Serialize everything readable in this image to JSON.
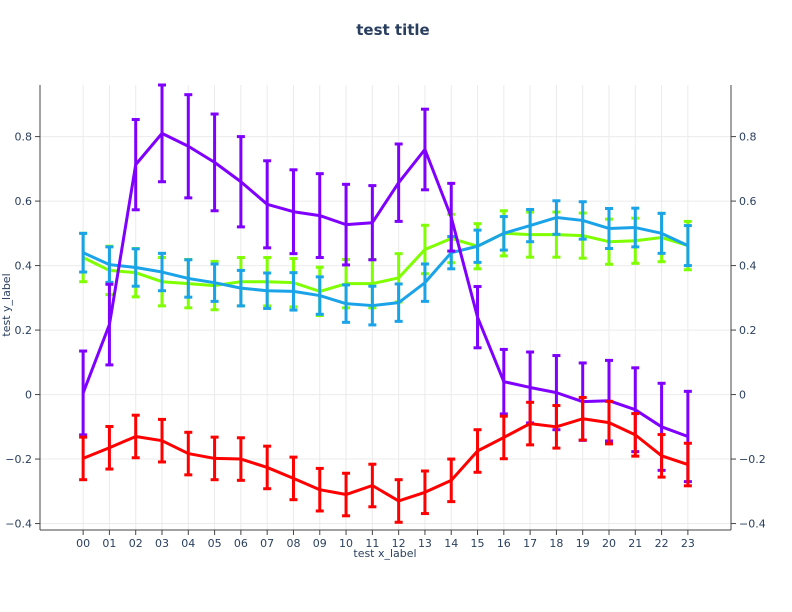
{
  "chart_data": {
    "type": "line",
    "title": "test title",
    "xlabel": "test x_label",
    "ylabel": "test y_label",
    "categories": [
      "00",
      "01",
      "02",
      "03",
      "04",
      "05",
      "06",
      "07",
      "08",
      "09",
      "10",
      "11",
      "12",
      "13",
      "14",
      "15",
      "16",
      "17",
      "18",
      "19",
      "20",
      "21",
      "22",
      "23"
    ],
    "xlim": [
      -1.64,
      24.64
    ],
    "ylim": [
      -0.42,
      0.96
    ],
    "yticks": [
      -0.4,
      -0.2,
      0,
      0.2,
      0.4,
      0.6,
      0.8
    ],
    "ytick_labels": [
      "−0.4",
      "−0.2",
      "0",
      "0.2",
      "0.4",
      "0.6",
      "0.8"
    ],
    "grid": true,
    "series": [
      {
        "name": "green",
        "color": "#7fff00",
        "values": [
          0.425,
          0.385,
          0.378,
          0.35,
          0.344,
          0.338,
          0.35,
          0.35,
          0.347,
          0.32,
          0.344,
          0.344,
          0.362,
          0.45,
          0.484,
          0.46,
          0.5,
          0.496,
          0.496,
          0.493,
          0.474,
          0.477,
          0.487,
          0.462
        ],
        "errors": [
          0.075,
          0.075,
          0.075,
          0.075,
          0.075,
          0.075,
          0.075,
          0.075,
          0.075,
          0.075,
          0.075,
          0.075,
          0.075,
          0.075,
          0.075,
          0.07,
          0.07,
          0.07,
          0.07,
          0.07,
          0.07,
          0.07,
          0.075,
          0.075
        ]
      },
      {
        "name": "blue",
        "color": "#1aa3e8",
        "values": [
          0.44,
          0.403,
          0.394,
          0.38,
          0.36,
          0.347,
          0.33,
          0.322,
          0.32,
          0.307,
          0.282,
          0.276,
          0.285,
          0.347,
          0.44,
          0.46,
          0.5,
          0.524,
          0.549,
          0.54,
          0.515,
          0.518,
          0.5,
          0.462
        ],
        "errors": [
          0.06,
          0.055,
          0.058,
          0.058,
          0.058,
          0.058,
          0.055,
          0.055,
          0.058,
          0.058,
          0.058,
          0.06,
          0.058,
          0.058,
          0.05,
          0.05,
          0.052,
          0.05,
          0.052,
          0.058,
          0.062,
          0.06,
          0.062,
          0.062
        ]
      },
      {
        "name": "purple",
        "color": "#7f00ff",
        "values": [
          0.005,
          0.217,
          0.713,
          0.81,
          0.77,
          0.72,
          0.66,
          0.59,
          0.567,
          0.555,
          0.527,
          0.533,
          0.657,
          0.76,
          0.55,
          0.24,
          0.04,
          0.022,
          0.006,
          -0.022,
          -0.019,
          -0.047,
          -0.1,
          -0.13
        ],
        "errors": [
          0.13,
          0.125,
          0.14,
          0.15,
          0.16,
          0.15,
          0.14,
          0.135,
          0.13,
          0.13,
          0.125,
          0.115,
          0.12,
          0.125,
          0.105,
          0.095,
          0.1,
          0.11,
          0.115,
          0.12,
          0.125,
          0.13,
          0.135,
          0.14
        ]
      },
      {
        "name": "red",
        "color": "#ff0000",
        "values": [
          -0.198,
          -0.165,
          -0.13,
          -0.143,
          -0.183,
          -0.198,
          -0.2,
          -0.226,
          -0.26,
          -0.295,
          -0.31,
          -0.282,
          -0.33,
          -0.303,
          -0.266,
          -0.175,
          -0.133,
          -0.09,
          -0.1,
          -0.075,
          -0.087,
          -0.125,
          -0.19,
          -0.217
        ],
        "errors": [
          0.066,
          0.066,
          0.066,
          0.066,
          0.066,
          0.066,
          0.066,
          0.066,
          0.066,
          0.066,
          0.066,
          0.066,
          0.066,
          0.066,
          0.066,
          0.066,
          0.066,
          0.066,
          0.066,
          0.066,
          0.066,
          0.066,
          0.066,
          0.066
        ]
      }
    ]
  }
}
